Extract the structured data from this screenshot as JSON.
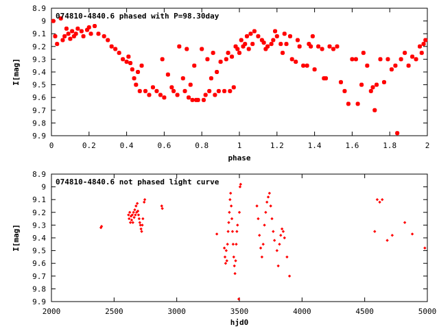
{
  "chart_data": [
    {
      "type": "scatter",
      "title": "074810-4840.6 phased with P=98.30day",
      "xlabel": "phase",
      "ylabel": "I[mag]",
      "xlim": [
        0,
        2
      ],
      "ylim": [
        8.9,
        9.9
      ],
      "y_inverted": true,
      "x_ticks": [
        "0",
        "0.2",
        "0.4",
        "0.6",
        "0.8",
        "1",
        "1.2",
        "1.4",
        "1.6",
        "1.8",
        "2"
      ],
      "y_ticks": [
        "8.9",
        "9",
        "9.1",
        "9.2",
        "9.3",
        "9.4",
        "9.5",
        "9.6",
        "9.7",
        "9.8",
        "9.9"
      ],
      "marker": "filled-square",
      "color": "#ff0000",
      "points": [
        [
          0.01,
          9.0
        ],
        [
          0.02,
          9.12
        ],
        [
          0.03,
          9.18
        ],
        [
          0.05,
          8.98
        ],
        [
          0.06,
          9.15
        ],
        [
          0.07,
          9.12
        ],
        [
          0.08,
          9.06
        ],
        [
          0.09,
          9.1
        ],
        [
          0.1,
          9.14
        ],
        [
          0.11,
          9.08
        ],
        [
          0.12,
          9.12
        ],
        [
          0.13,
          9.1
        ],
        [
          0.14,
          9.06
        ],
        [
          0.16,
          9.08
        ],
        [
          0.17,
          9.12
        ],
        [
          0.19,
          9.07
        ],
        [
          0.2,
          9.05
        ],
        [
          0.21,
          9.1
        ],
        [
          0.23,
          9.04
        ],
        [
          0.25,
          9.1
        ],
        [
          0.28,
          9.12
        ],
        [
          0.3,
          9.15
        ],
        [
          0.32,
          9.2
        ],
        [
          0.34,
          9.22
        ],
        [
          0.36,
          9.25
        ],
        [
          0.38,
          9.3
        ],
        [
          0.4,
          9.32
        ],
        [
          0.41,
          9.28
        ],
        [
          0.42,
          9.33
        ],
        [
          0.43,
          9.38
        ],
        [
          0.44,
          9.45
        ],
        [
          0.45,
          9.5
        ],
        [
          0.46,
          9.4
        ],
        [
          0.47,
          9.55
        ],
        [
          0.48,
          9.35
        ],
        [
          0.5,
          9.55
        ],
        [
          0.52,
          9.58
        ],
        [
          0.54,
          9.52
        ],
        [
          0.56,
          9.55
        ],
        [
          0.58,
          9.58
        ],
        [
          0.59,
          9.3
        ],
        [
          0.6,
          9.6
        ],
        [
          0.62,
          9.42
        ],
        [
          0.64,
          9.52
        ],
        [
          0.65,
          9.55
        ],
        [
          0.67,
          9.58
        ],
        [
          0.68,
          9.2
        ],
        [
          0.7,
          9.45
        ],
        [
          0.71,
          9.55
        ],
        [
          0.72,
          9.22
        ],
        [
          0.73,
          9.6
        ],
        [
          0.74,
          9.5
        ],
        [
          0.75,
          9.62
        ],
        [
          0.76,
          9.35
        ],
        [
          0.77,
          9.62
        ],
        [
          0.78,
          9.62
        ],
        [
          0.8,
          9.22
        ],
        [
          0.81,
          9.62
        ],
        [
          0.82,
          9.58
        ],
        [
          0.83,
          9.3
        ],
        [
          0.84,
          9.55
        ],
        [
          0.85,
          9.45
        ],
        [
          0.86,
          9.25
        ],
        [
          0.87,
          9.58
        ],
        [
          0.88,
          9.4
        ],
        [
          0.89,
          9.55
        ],
        [
          0.9,
          9.32
        ],
        [
          0.92,
          9.55
        ],
        [
          0.93,
          9.3
        ],
        [
          0.94,
          9.25
        ],
        [
          0.95,
          9.55
        ],
        [
          0.96,
          9.28
        ],
        [
          0.97,
          9.52
        ],
        [
          0.98,
          9.2
        ],
        [
          0.99,
          9.22
        ],
        [
          1.0,
          9.25
        ],
        [
          1.01,
          9.15
        ],
        [
          1.02,
          9.2
        ],
        [
          1.03,
          9.18
        ],
        [
          1.04,
          9.12
        ],
        [
          1.05,
          9.22
        ],
        [
          1.06,
          9.1
        ],
        [
          1.07,
          9.18
        ],
        [
          1.08,
          9.08
        ],
        [
          1.1,
          9.12
        ],
        [
          1.12,
          9.15
        ],
        [
          1.13,
          9.17
        ],
        [
          1.14,
          9.22
        ],
        [
          1.15,
          9.2
        ],
        [
          1.17,
          9.18
        ],
        [
          1.18,
          9.15
        ],
        [
          1.19,
          9.08
        ],
        [
          1.2,
          9.12
        ],
        [
          1.22,
          9.18
        ],
        [
          1.23,
          9.25
        ],
        [
          1.24,
          9.1
        ],
        [
          1.25,
          9.18
        ],
        [
          1.27,
          9.12
        ],
        [
          1.28,
          9.3
        ],
        [
          1.3,
          9.32
        ],
        [
          1.31,
          9.15
        ],
        [
          1.32,
          9.2
        ],
        [
          1.34,
          9.35
        ],
        [
          1.36,
          9.35
        ],
        [
          1.37,
          9.18
        ],
        [
          1.38,
          9.2
        ],
        [
          1.39,
          9.12
        ],
        [
          1.4,
          9.38
        ],
        [
          1.42,
          9.2
        ],
        [
          1.44,
          9.22
        ],
        [
          1.45,
          9.45
        ],
        [
          1.46,
          9.45
        ],
        [
          1.48,
          9.2
        ],
        [
          1.5,
          9.22
        ],
        [
          1.52,
          9.2
        ],
        [
          1.54,
          9.48
        ],
        [
          1.56,
          9.55
        ],
        [
          1.58,
          9.65
        ],
        [
          1.6,
          9.3
        ],
        [
          1.62,
          9.3
        ],
        [
          1.63,
          9.65
        ],
        [
          1.65,
          9.5
        ],
        [
          1.66,
          9.25
        ],
        [
          1.68,
          9.35
        ],
        [
          1.7,
          9.55
        ],
        [
          1.71,
          9.52
        ],
        [
          1.72,
          9.7
        ],
        [
          1.73,
          9.5
        ],
        [
          1.75,
          9.3
        ],
        [
          1.77,
          9.48
        ],
        [
          1.79,
          9.3
        ],
        [
          1.81,
          9.38
        ],
        [
          1.83,
          9.35
        ],
        [
          1.84,
          9.88
        ],
        [
          1.86,
          9.3
        ],
        [
          1.88,
          9.25
        ],
        [
          1.9,
          9.35
        ],
        [
          1.92,
          9.28
        ],
        [
          1.94,
          9.3
        ],
        [
          1.96,
          9.2
        ],
        [
          1.97,
          9.25
        ],
        [
          1.98,
          9.18
        ],
        [
          1.99,
          9.15
        ]
      ]
    },
    {
      "type": "scatter",
      "title": "074810-4840.6 not phased light curve",
      "xlabel": "hjd0",
      "ylabel": "I[mag]",
      "xlim": [
        2000,
        5000
      ],
      "ylim": [
        8.9,
        9.9
      ],
      "y_inverted": true,
      "x_ticks": [
        "2000",
        "2500",
        "3000",
        "3500",
        "4000",
        "4500",
        "5000"
      ],
      "y_ticks": [
        "8.9",
        "9",
        "9.1",
        "9.2",
        "9.3",
        "9.4",
        "9.5",
        "9.6",
        "9.7",
        "9.8",
        "9.9"
      ],
      "marker": "small-diamond",
      "color": "#ff0000",
      "points": [
        [
          2395,
          9.32
        ],
        [
          2400,
          9.31
        ],
        [
          2615,
          9.22
        ],
        [
          2620,
          9.25
        ],
        [
          2625,
          9.2
        ],
        [
          2630,
          9.28
        ],
        [
          2635,
          9.23
        ],
        [
          2640,
          9.26
        ],
        [
          2645,
          9.22
        ],
        [
          2650,
          9.28
        ],
        [
          2655,
          9.2
        ],
        [
          2660,
          9.24
        ],
        [
          2665,
          9.18
        ],
        [
          2670,
          9.22
        ],
        [
          2675,
          9.15
        ],
        [
          2680,
          9.2
        ],
        [
          2685,
          9.13
        ],
        [
          2690,
          9.19
        ],
        [
          2695,
          9.22
        ],
        [
          2700,
          9.25
        ],
        [
          2705,
          9.28
        ],
        [
          2710,
          9.3
        ],
        [
          2715,
          9.33
        ],
        [
          2720,
          9.35
        ],
        [
          2725,
          9.3
        ],
        [
          2730,
          9.25
        ],
        [
          2740,
          9.12
        ],
        [
          2745,
          9.1
        ],
        [
          2880,
          9.15
        ],
        [
          2885,
          9.17
        ],
        [
          3320,
          9.37
        ],
        [
          3380,
          9.48
        ],
        [
          3385,
          9.55
        ],
        [
          3390,
          9.6
        ],
        [
          3395,
          9.5
        ],
        [
          3400,
          9.58
        ],
        [
          3405,
          9.45
        ],
        [
          3410,
          9.35
        ],
        [
          3415,
          9.28
        ],
        [
          3420,
          9.2
        ],
        [
          3425,
          9.1
        ],
        [
          3430,
          9.05
        ],
        [
          3435,
          9.15
        ],
        [
          3440,
          9.25
        ],
        [
          3445,
          9.35
        ],
        [
          3450,
          9.45
        ],
        [
          3455,
          9.55
        ],
        [
          3460,
          9.62
        ],
        [
          3465,
          9.68
        ],
        [
          3470,
          9.58
        ],
        [
          3475,
          9.45
        ],
        [
          3480,
          9.35
        ],
        [
          3485,
          9.3
        ],
        [
          3495,
          9.88
        ],
        [
          3500,
          9.2
        ],
        [
          3505,
          9.0
        ],
        [
          3510,
          8.98
        ],
        [
          3640,
          9.15
        ],
        [
          3650,
          9.25
        ],
        [
          3660,
          9.38
        ],
        [
          3670,
          9.48
        ],
        [
          3680,
          9.55
        ],
        [
          3690,
          9.45
        ],
        [
          3700,
          9.3
        ],
        [
          3710,
          9.2
        ],
        [
          3720,
          9.12
        ],
        [
          3730,
          9.08
        ],
        [
          3740,
          9.05
        ],
        [
          3750,
          9.15
        ],
        [
          3760,
          9.25
        ],
        [
          3770,
          9.35
        ],
        [
          3780,
          9.42
        ],
        [
          3800,
          9.5
        ],
        [
          3810,
          9.62
        ],
        [
          3820,
          9.45
        ],
        [
          3830,
          9.38
        ],
        [
          3840,
          9.33
        ],
        [
          3850,
          9.35
        ],
        [
          3860,
          9.4
        ],
        [
          3880,
          9.55
        ],
        [
          3900,
          9.7
        ],
        [
          4580,
          9.35
        ],
        [
          4600,
          9.1
        ],
        [
          4620,
          9.12
        ],
        [
          4640,
          9.1
        ],
        [
          4680,
          9.42
        ],
        [
          4720,
          9.38
        ],
        [
          4820,
          9.28
        ],
        [
          4880,
          9.37
        ],
        [
          4980,
          9.48
        ]
      ]
    }
  ]
}
